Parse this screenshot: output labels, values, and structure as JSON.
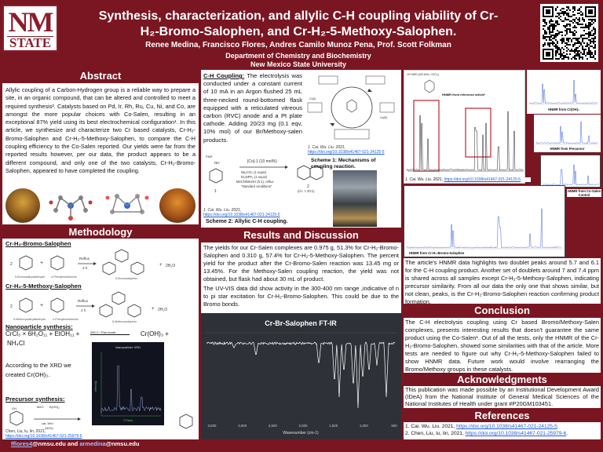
{
  "header": {
    "logo_lines": [
      "NM",
      "STATE"
    ],
    "title_line1": "Synthesis, characterization, and allylic C-H coupling viability of Cr-",
    "title_line2": "H₂-Bromo-Salophen, and Cr-H₂-5-Methoxy-Salophen.",
    "authors": "Renee Medina, Francisco Flores, Andres Camilo Munoz Pena, Prof. Scott Folkman",
    "department": "Department of Chemistry and Biochemistry",
    "university": "New Mexico State University"
  },
  "abstract": {
    "heading": "Abstract",
    "text": "Allylic coupling of a Carbon-Hydrogen group is a reliable way to prepare a site, in an organic compound, that can be altered and controlled to meet a required synthesis². Catalysts based on Pd, Ir, Rh, Ru, Cu, Ni, and Co, are amongst the more popular choices with Co-Salen, resulting in an exceptional 87% yield using its best electrochemical configuration¹. In this article, we synthesize and characterize two Cr based catalysts, Cr-H₂-Bromo-Salophen and Cr-H₂-5-Methoxy-Salophen, to compare the C-H coupling efficiency to the Co-Salen reported. Our yields were far from the reported results however, per our data, the product appears to be a different compound, and only one of the two catalysts, Cr-H₂-Bromo-Salophen, appeared to have completed the coupling."
  },
  "methodology": {
    "heading": "Methodology",
    "bromo_label": "Cr-H₂-Bromo-Salophen",
    "bromo_reagents": [
      "5-Bromosalicylaldehyde",
      "o-Phenylenediamine",
      "Reflux",
      "2 h",
      "5-Bromosalophen",
      "2H₂O"
    ],
    "methoxy_label": "Cr-H₂-5-Methoxy-Salophen",
    "methoxy_reagents": [
      "5-Methoxysalicylaldehyde",
      "o-Phenylenediamine",
      "Reflux",
      "2 h",
      "5-Methoxysalophen",
      "2H₂O"
    ],
    "nano_label": "Nanoparticle synthesis:",
    "nano_eq_left": "CrCl₃ × 6H₂O₁₁ + EtOH₁₁ +",
    "nano_eq_mid": "250 C / Pan bomb",
    "nano_eq_right": "Cr(OH)₃  +",
    "nano_eq_nh4": "NH₄Cl",
    "xrd_text": "According to the XRD we created Cr(OH)₃.",
    "xrd_chart_title": "Nanoparticle XRD",
    "xrd_chart_ylabel": "Intensity",
    "xrd_chart_xlabel": "2Theta",
    "precursor_label": "Precursor synthesis:",
    "precursor_reagents": [
      "MeO",
      "B(OH)₂",
      "cat. Wtri",
      "(90%)"
    ],
    "precursor_ref_prefix": "Chen, Liu, lu, lin, 2021,",
    "precursor_ref_link": "https://doi.org/10.1038/s41467-021-25979-6"
  },
  "contact": {
    "email1_user": "fflores4",
    "email1_domain": "@nmsu.edu",
    "and": " and ",
    "email2_user": "armedina",
    "email2_domain": "@nmsu.edu"
  },
  "coupling": {
    "heading": "C-H Coupling:",
    "text": "The electrolysis was conducted under a constant current of 10 mA in an Argon flushed 25 mL three-necked round-bottomed flask equipped with a reticulated vitreous carbon (RVC) anode and a Pt plate cathode. Adding 20/23 mg (0.1 eqv, 10% mol) of our Br/Methoxy-salen products.",
    "scheme2_conditions": [
      "[Co]-1 (10 mol%)",
      "Na₂CO₃ (1 equiv)",
      "Et₄NPF₆ (1 equiv)",
      "MeCN/MeOH (5:1), reflux",
      "\"standard conditions\""
    ],
    "scheme2_product": "2",
    "scheme2_ratio": "(d.r. > 20:1)",
    "scheme2_sm": "1",
    "scheme2_ref_prefix": "1. Cai. Wu. Liu. 2021,",
    "scheme2_ref_link": "https://doi.org/10.1038/s41467-021-24125-5",
    "scheme2_caption": "Scheme 2: Allylic C-H coupling.",
    "scheme1_ref_prefix": "1. Cai. Wu. Liu. 2021,",
    "scheme1_ref_link": "https://doi.org/10.1038/s41467-021-24125-5",
    "scheme1_caption": "Scheme 1: Mechanisms of coupling reaction."
  },
  "nmr": {
    "ref_label": "HNMR from reference article¹",
    "crcl3_label": "HNMR from Cr(OH)₃",
    "precursor_label": "HNMR from Precursor",
    "salen_label": "HNMR from Co-Salen Control",
    "bromo_label": "HNMR from Cr-H₂-Bromo-Salophen",
    "ref_prefix": "1. Cai. Wu. Liu. 2021,",
    "ref_link": "https://doi.org/10.1038/s41467-021-24125-5",
    "top_axis_label": "1H NMR (400 MHz, CDCl₃)"
  },
  "results": {
    "heading": "Results and Discussion",
    "text1": "The yields for our Cr-Salen complexes are 0.975 g, 51.3% for Cr-H₂-Bromo-Salophen and 0.310 g, 57.4% for Cr-H₂-5-Methoxy-Salophen. The percent yield for the product after the Cr-Bromo-Salen reaction was 13.45 mg or 13.45%. For the Methoxy-Salen coupling reaction, the yield was not obtained, but flask had about 30 mL of product.",
    "text2": "The UV-VIS data did show activity in the 300-400 nm range ,indicative of n to pi star excitation for Cr-H₂-Bromo-Salophen. This could be due to the Bromo bonds.",
    "ftir_title": "Cr-Br-Salophen FT-IR",
    "ftir_xlabel": "Wavenumber (cm-1)",
    "ftir_ticks": [
      "3,500",
      "3,000",
      "2,500",
      "2,000",
      "1,500",
      "1,000",
      "500"
    ],
    "nmr_text": "The article's HNMR data highlights two doublet peaks around 5.7 and 6.1 for the C-H coupling product. Another set of doublets around 7 and 7.4 ppm is shared across all samples except Cr-H₂-5-Methoxy-Salophen, indicating precursor similarity. From all our data the only one that shows similar, but not clean, peaks, is the Cr-H₂-Bromo-Salophen reaction confirming product formation."
  },
  "conclusion": {
    "heading": "Conclusion",
    "text": "The C-H electrolysis coupling using Cr based Bromo/Methoxy-Salen complexes, presents interesting results that doesn't guarantee the same product using the Co-Salen¹. Out of all the tests, only the HNMR of the Cr-H₂-Bromo-Salophen, showed some similarities with that of the article. More tests are needed to figure out why Cr-H₂-5-Methoxy-Salophen failed to show HNMR data. Future work would involve rearranging the Bromo/Methoxy groups in these catalysts."
  },
  "acknowledgments": {
    "heading": "Acknowledgments",
    "text": "This publication was made possible by an Institutional Development Award (IDeA) from the National Institute of General Medical Sciences of the National Institutes of Health under grant #P20GM103451."
  },
  "references": {
    "heading": "References",
    "ref1_prefix": "1. Cai. Wu. Liu. 2021,",
    "ref1_link": "https://doi.org/10.1038/s41467-021-24125-5",
    "ref2_prefix": "2. Chen, Liu, lu, lin, 2021,",
    "ref2_link": "https://doi.org/10.1038/s41467-021-25979-6",
    "period": "."
  },
  "colors": {
    "background": "#7a1622",
    "accent": "#8c1c2b",
    "link": "#1e5bd6"
  }
}
